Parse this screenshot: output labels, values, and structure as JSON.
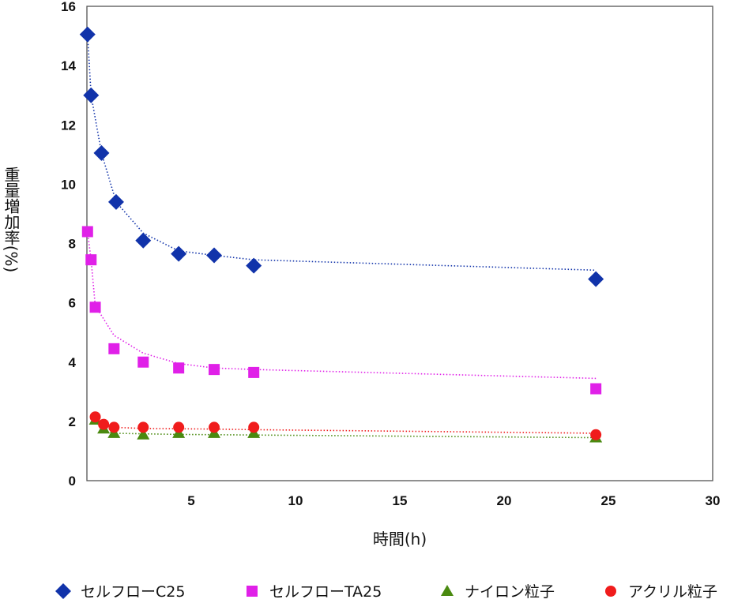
{
  "chart_data": {
    "type": "scatter",
    "xlabel": "時間(h)",
    "ylabel": "重量増加率(%)",
    "xlim": [
      0,
      30
    ],
    "ylim": [
      0,
      16
    ],
    "xticks": [
      5,
      10,
      15,
      20,
      25,
      30
    ],
    "yticks": [
      0,
      2,
      4,
      6,
      8,
      10,
      12,
      14,
      16
    ],
    "grid": false,
    "legend_position": "bottom",
    "trendlines": "dotted",
    "series": [
      {
        "name": "セルフローC25",
        "marker": "diamond",
        "color": "#1133aa",
        "x": [
          0.03,
          0.2,
          0.7,
          1.4,
          2.7,
          4.4,
          6.1,
          8.0,
          24.4
        ],
        "y": [
          15.05,
          13.0,
          11.05,
          9.4,
          8.1,
          7.65,
          7.6,
          7.25,
          6.8
        ],
        "trend_y": [
          15.05,
          13.0,
          11.05,
          9.4,
          8.35,
          7.75,
          7.6,
          7.45,
          7.1
        ]
      },
      {
        "name": "セルフローTA25",
        "marker": "square",
        "color": "#e020e8",
        "x": [
          0.03,
          0.2,
          0.4,
          1.3,
          2.7,
          4.4,
          6.1,
          8.0,
          24.4
        ],
        "y": [
          8.4,
          7.45,
          5.85,
          4.45,
          4.0,
          3.8,
          3.75,
          3.65,
          3.1
        ],
        "trend_y": [
          8.4,
          7.45,
          5.9,
          4.9,
          4.3,
          3.95,
          3.8,
          3.75,
          3.45
        ]
      },
      {
        "name": "ナイロン粒子",
        "marker": "triangle",
        "color": "#4a8a10",
        "x": [
          0.4,
          0.8,
          1.3,
          2.7,
          4.4,
          6.1,
          8.0,
          24.4
        ],
        "y": [
          2.05,
          1.75,
          1.6,
          1.55,
          1.6,
          1.6,
          1.6,
          1.45
        ],
        "trend_y": [
          2.0,
          1.7,
          1.6,
          1.58,
          1.56,
          1.55,
          1.54,
          1.45
        ]
      },
      {
        "name": "アクリル粒子",
        "marker": "circle",
        "color": "#f01c1c",
        "x": [
          0.4,
          0.8,
          1.3,
          2.7,
          4.4,
          6.1,
          8.0,
          24.4
        ],
        "y": [
          2.15,
          1.9,
          1.8,
          1.8,
          1.8,
          1.8,
          1.8,
          1.55
        ],
        "trend_y": [
          2.1,
          1.9,
          1.8,
          1.76,
          1.75,
          1.74,
          1.72,
          1.6
        ]
      }
    ]
  }
}
